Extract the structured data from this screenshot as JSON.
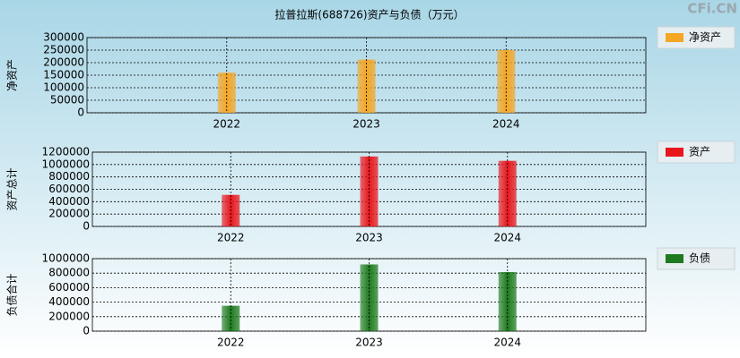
{
  "watermark": "CFi.CN",
  "chart_data": [
    {
      "type": "bar",
      "title": "拉普拉斯(688726)资产与负债（万元）",
      "y_label": "净资产",
      "categories": [
        "2022",
        "2023",
        "2024"
      ],
      "series": [
        {
          "name": "净资产",
          "color": "#f5a623",
          "values": [
            160000,
            212000,
            250000
          ]
        }
      ],
      "ylim": [
        0,
        300000
      ],
      "yticks": [
        0,
        50000,
        100000,
        150000,
        200000,
        250000,
        300000
      ],
      "grid": true
    },
    {
      "type": "bar",
      "y_label": "资产总计",
      "categories": [
        "2022",
        "2023",
        "2024"
      ],
      "series": [
        {
          "name": "资产",
          "color": "#e8161c",
          "values": [
            510000,
            1130000,
            1060000
          ]
        }
      ],
      "ylim": [
        0,
        1200000
      ],
      "yticks": [
        0,
        200000,
        400000,
        600000,
        800000,
        1000000,
        1200000
      ],
      "grid": true
    },
    {
      "type": "bar",
      "y_label": "负债合计",
      "categories": [
        "2022",
        "2023",
        "2024"
      ],
      "series": [
        {
          "name": "负债",
          "color": "#1e7a1e",
          "values": [
            350000,
            920000,
            815000
          ]
        }
      ],
      "ylim": [
        0,
        1000000
      ],
      "yticks": [
        0,
        200000,
        400000,
        600000,
        800000,
        1000000
      ],
      "grid": true
    }
  ]
}
